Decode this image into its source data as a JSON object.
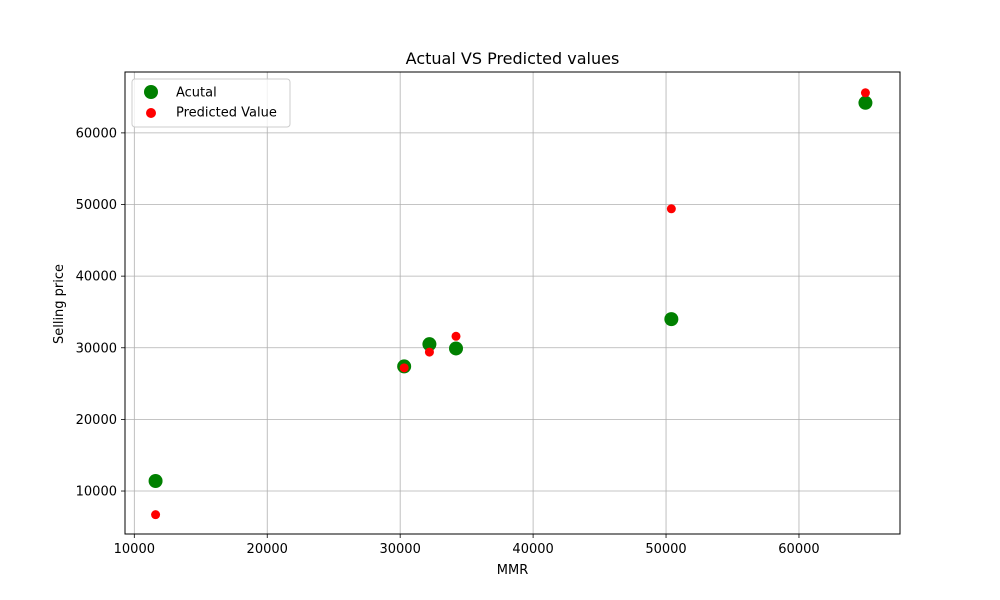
{
  "chart_data": {
    "type": "scatter",
    "title": "Actual VS Predicted values",
    "xlabel": "MMR",
    "ylabel": "Selling price",
    "xlim": [
      9300,
      67600
    ],
    "ylim": [
      4000,
      68500
    ],
    "xticks": [
      10000,
      20000,
      30000,
      40000,
      50000,
      60000
    ],
    "yticks": [
      10000,
      20000,
      30000,
      40000,
      50000,
      60000
    ],
    "grid": true,
    "legend_position": "top-left",
    "series": [
      {
        "name": "Acutal",
        "color": "#008000",
        "marker": "circle-large",
        "points": [
          {
            "x": 11600,
            "y": 11400
          },
          {
            "x": 30300,
            "y": 27400
          },
          {
            "x": 32200,
            "y": 30500
          },
          {
            "x": 34200,
            "y": 29900
          },
          {
            "x": 50400,
            "y": 34000
          },
          {
            "x": 65000,
            "y": 64200
          }
        ]
      },
      {
        "name": "Predicted Value",
        "color": "#ff0000",
        "marker": "circle-small",
        "points": [
          {
            "x": 11600,
            "y": 6700
          },
          {
            "x": 30300,
            "y": 27200
          },
          {
            "x": 32200,
            "y": 29400
          },
          {
            "x": 34200,
            "y": 31600
          },
          {
            "x": 50400,
            "y": 49400
          },
          {
            "x": 65000,
            "y": 65600
          }
        ]
      }
    ]
  }
}
